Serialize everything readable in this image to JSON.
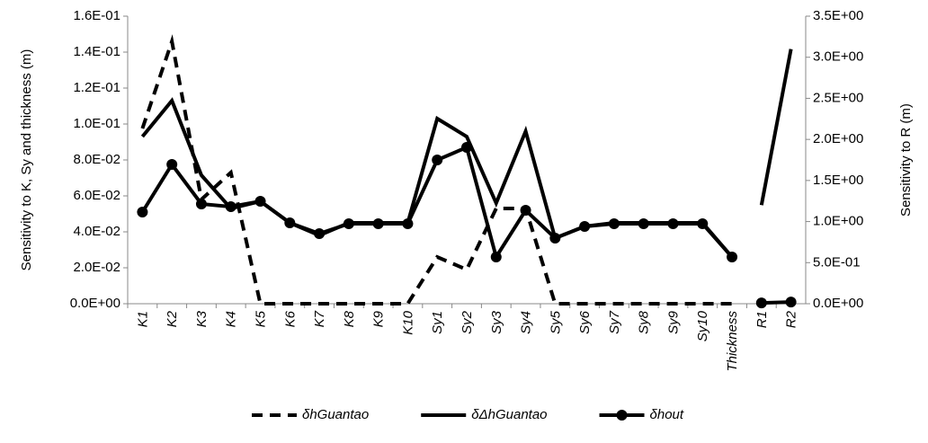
{
  "chart_data": {
    "type": "line",
    "categories": [
      "K1",
      "K2",
      "K3",
      "K4",
      "K5",
      "K6",
      "K7",
      "K8",
      "K9",
      "K10",
      "Sy1",
      "Sy2",
      "Sy3",
      "Sy4",
      "Sy5",
      "Sy6",
      "Sy7",
      "Sy8",
      "Sy9",
      "Sy10",
      "Thickness",
      "R1",
      "R2"
    ],
    "ylabel": "Sensitivity to K, Sy and thickness (m)",
    "y2label": "Sensitivity to R (m)",
    "ylim": [
      0,
      0.16
    ],
    "yticks": [
      {
        "value": 0,
        "label": "0.0E+00"
      },
      {
        "value": 0.02,
        "label": "2.0E-02"
      },
      {
        "value": 0.04,
        "label": "4.0E-02"
      },
      {
        "value": 0.06,
        "label": "6.0E-02"
      },
      {
        "value": 0.08,
        "label": "8.0E-02"
      },
      {
        "value": 0.1,
        "label": "1.0E-01"
      },
      {
        "value": 0.12,
        "label": "1.2E-01"
      },
      {
        "value": 0.14,
        "label": "1.4E-01"
      },
      {
        "value": 0.16,
        "label": "1.6E-01"
      }
    ],
    "y2lim": [
      0,
      3.5
    ],
    "y2ticks": [
      {
        "value": 0,
        "label": "0.0E+00"
      },
      {
        "value": 0.5,
        "label": "5.0E-01"
      },
      {
        "value": 1,
        "label": "1.0E+00"
      },
      {
        "value": 1.5,
        "label": "1.5E+00"
      },
      {
        "value": 2,
        "label": "2.0E+00"
      },
      {
        "value": 2.5,
        "label": "2.5E+00"
      },
      {
        "value": 3,
        "label": "3.0E+00"
      },
      {
        "value": 3.5,
        "label": "3.5E+00"
      }
    ],
    "series": [
      {
        "name": "δhGuantao",
        "color": "#000000",
        "style": "dashed",
        "marker": false,
        "values": [
          0.0975,
          0.146,
          0.058,
          0.073,
          0,
          0,
          0,
          0,
          0,
          0,
          0.026,
          0.019,
          0.053,
          0.053,
          0,
          0,
          0,
          0,
          0,
          0,
          0,
          null,
          null
        ]
      },
      {
        "name": "δΔhGuantao",
        "color": "#000000",
        "style": "solid",
        "marker": false,
        "values": [
          0.093,
          0.113,
          0.0715,
          0.053,
          0.057,
          0.045,
          0.038,
          0.045,
          0.045,
          0.045,
          0.103,
          0.093,
          0.056,
          0.096,
          0.0365,
          0.043,
          0.045,
          0.045,
          0.045,
          0.045,
          0.026,
          null,
          null
        ]
      },
      {
        "name": "δhout",
        "color": "#000000",
        "style": "solid",
        "marker": true,
        "values": [
          0.051,
          0.0775,
          0.0555,
          0.054,
          0.057,
          0.045,
          0.039,
          0.0445,
          0.0445,
          0.0445,
          0.08,
          0.087,
          0.026,
          0.052,
          0.0365,
          0.043,
          0.0445,
          0.0445,
          0.0445,
          0.0445,
          0.026,
          null,
          null
        ]
      },
      {
        "name": "δΔhGuantao",
        "color": "#000000",
        "style": "solid",
        "marker": false,
        "axis": "y2",
        "values": [
          null,
          null,
          null,
          null,
          null,
          null,
          null,
          null,
          null,
          null,
          null,
          null,
          null,
          null,
          null,
          null,
          null,
          null,
          null,
          null,
          null,
          1.2,
          3.1
        ]
      },
      {
        "name": "δhout",
        "color": "#000000",
        "style": "solid",
        "marker": true,
        "axis": "y2",
        "values": [
          null,
          null,
          null,
          null,
          null,
          null,
          null,
          null,
          null,
          null,
          null,
          null,
          null,
          null,
          null,
          null,
          null,
          null,
          null,
          null,
          null,
          0.01,
          0.02
        ]
      }
    ]
  }
}
